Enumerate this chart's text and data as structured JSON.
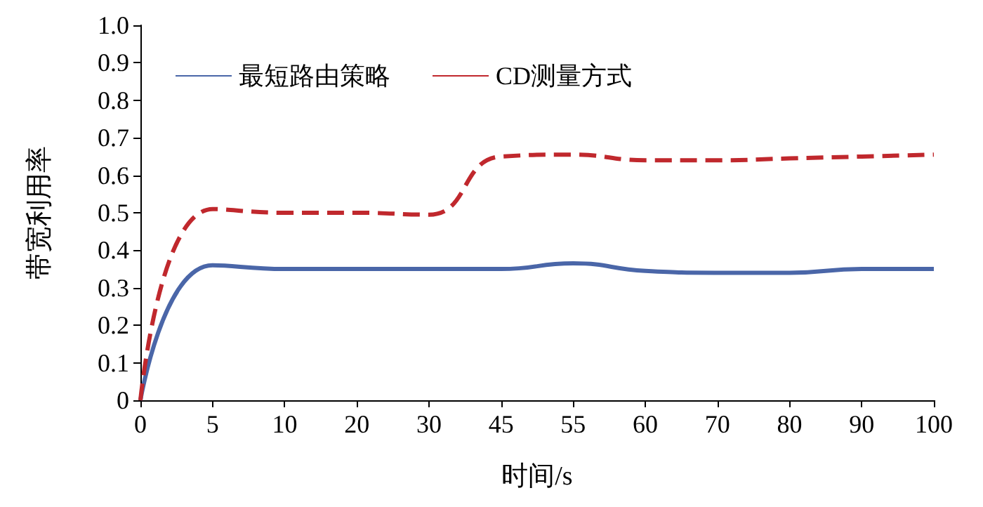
{
  "chart_data": {
    "type": "line",
    "xlabel": "时间/s",
    "ylabel": "带宽利用率",
    "categories": [
      "0",
      "5",
      "10",
      "20",
      "30",
      "45",
      "55",
      "60",
      "70",
      "80",
      "90",
      "100"
    ],
    "series": [
      {
        "name": "最短路由策略",
        "color": "#4a66a8",
        "line_style": "solid",
        "values": [
          0,
          0.36,
          0.35,
          0.35,
          0.35,
          0.35,
          0.365,
          0.345,
          0.34,
          0.34,
          0.35,
          0.35
        ]
      },
      {
        "name": "CD测量方式",
        "color": "#c0282d",
        "line_style": "dashed",
        "values": [
          0,
          0.51,
          0.5,
          0.5,
          0.495,
          0.65,
          0.655,
          0.64,
          0.64,
          0.645,
          0.65,
          0.655
        ]
      }
    ],
    "ylim": [
      0,
      1
    ],
    "yticks": [
      0,
      0.1,
      0.2,
      0.3,
      0.4,
      0.5,
      0.6,
      0.7,
      0.8,
      0.9,
      {
        "value": 1,
        "label": "1.0"
      }
    ],
    "grid": false,
    "legend": "top left",
    "marker": "none"
  }
}
